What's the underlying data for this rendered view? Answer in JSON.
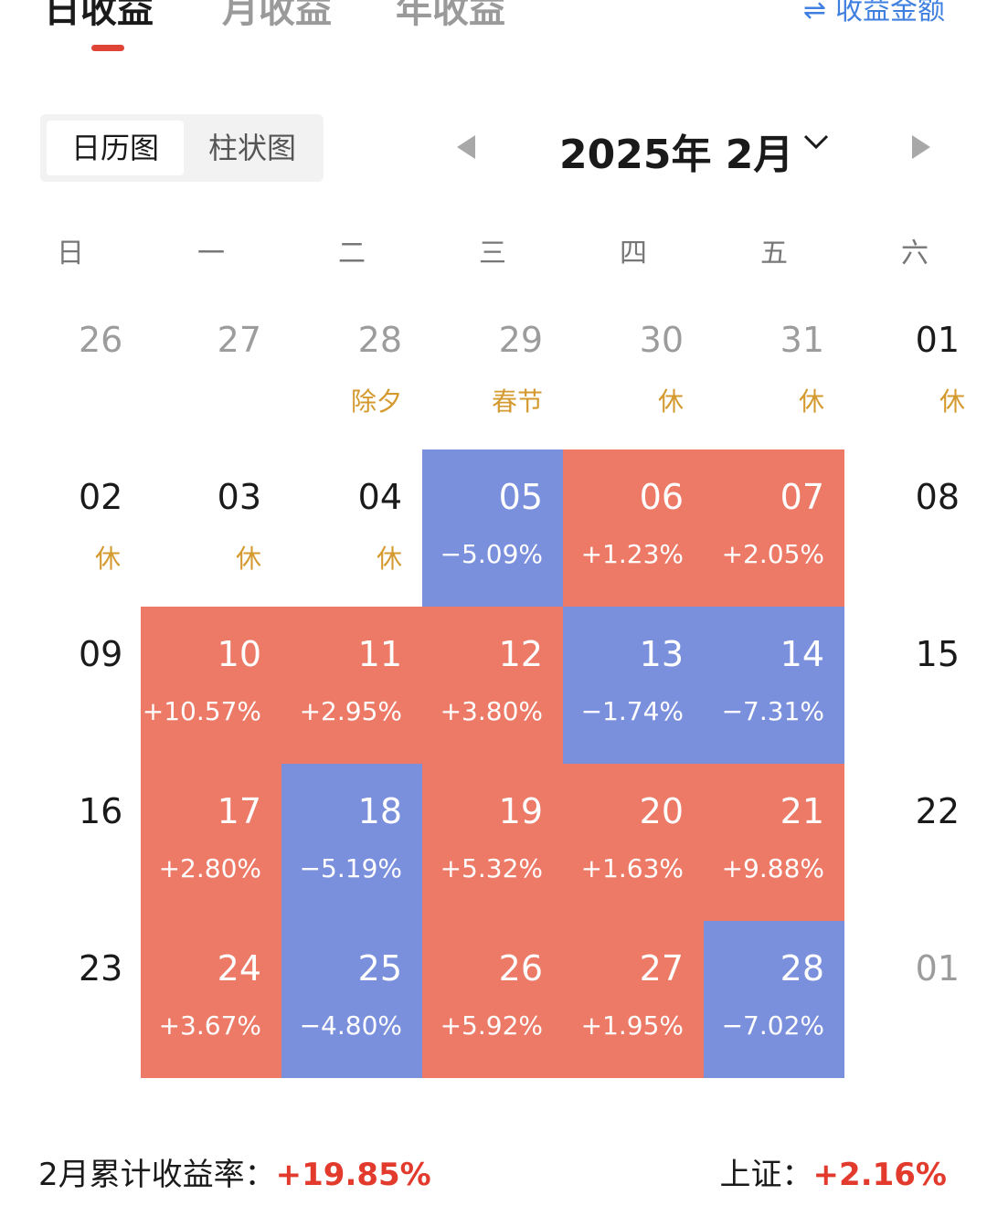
{
  "top_tabs": [
    {
      "label": "日收益",
      "active": true
    },
    {
      "label": "月收益",
      "active": false
    },
    {
      "label": "年收益",
      "active": false
    }
  ],
  "amount_toggle": {
    "icon": "swap-icon",
    "label": "收益金额"
  },
  "view_switch": {
    "active": "日历图",
    "inactive": "柱状图"
  },
  "month_nav": {
    "title": "2025年 2月",
    "prev_icon": "caret-left-icon",
    "next_icon": "caret-right-icon",
    "dropdown_icon": "chevron-down-icon"
  },
  "weekdays": [
    "日",
    "一",
    "二",
    "三",
    "四",
    "五",
    "六"
  ],
  "colors": {
    "up": "#ec7a66",
    "down": "#7b90dd",
    "holiday": "#d49a2f",
    "accent": "#e23a2c",
    "link": "#3f7fe0"
  },
  "calendar": {
    "weeks": [
      [
        {
          "day": "26",
          "note": "",
          "state": "dim"
        },
        {
          "day": "27",
          "note": "",
          "state": "dim"
        },
        {
          "day": "28",
          "note": "除夕",
          "state": "dim"
        },
        {
          "day": "29",
          "note": "春节",
          "state": "dim"
        },
        {
          "day": "30",
          "note": "休",
          "state": "dim"
        },
        {
          "day": "31",
          "note": "休",
          "state": "dim"
        },
        {
          "day": "01",
          "note": "休",
          "state": "plain"
        }
      ],
      [
        {
          "day": "02",
          "note": "休",
          "state": "plain"
        },
        {
          "day": "03",
          "note": "休",
          "state": "plain"
        },
        {
          "day": "04",
          "note": "休",
          "state": "plain"
        },
        {
          "day": "05",
          "note": "−5.09%",
          "state": "down"
        },
        {
          "day": "06",
          "note": "+1.23%",
          "state": "up"
        },
        {
          "day": "07",
          "note": "+2.05%",
          "state": "up"
        },
        {
          "day": "08",
          "note": "",
          "state": "plain"
        }
      ],
      [
        {
          "day": "09",
          "note": "",
          "state": "plain"
        },
        {
          "day": "10",
          "note": "+10.57%",
          "state": "up"
        },
        {
          "day": "11",
          "note": "+2.95%",
          "state": "up"
        },
        {
          "day": "12",
          "note": "+3.80%",
          "state": "up"
        },
        {
          "day": "13",
          "note": "−1.74%",
          "state": "down"
        },
        {
          "day": "14",
          "note": "−7.31%",
          "state": "down"
        },
        {
          "day": "15",
          "note": "",
          "state": "plain"
        }
      ],
      [
        {
          "day": "16",
          "note": "",
          "state": "plain"
        },
        {
          "day": "17",
          "note": "+2.80%",
          "state": "up"
        },
        {
          "day": "18",
          "note": "−5.19%",
          "state": "down"
        },
        {
          "day": "19",
          "note": "+5.32%",
          "state": "up"
        },
        {
          "day": "20",
          "note": "+1.63%",
          "state": "up"
        },
        {
          "day": "21",
          "note": "+9.88%",
          "state": "up"
        },
        {
          "day": "22",
          "note": "",
          "state": "plain"
        }
      ],
      [
        {
          "day": "23",
          "note": "",
          "state": "plain"
        },
        {
          "day": "24",
          "note": "+3.67%",
          "state": "up"
        },
        {
          "day": "25",
          "note": "−4.80%",
          "state": "down"
        },
        {
          "day": "26",
          "note": "+5.92%",
          "state": "up"
        },
        {
          "day": "27",
          "note": "+1.95%",
          "state": "up"
        },
        {
          "day": "28",
          "note": "−7.02%",
          "state": "down"
        },
        {
          "day": "01",
          "note": "",
          "state": "dim"
        }
      ]
    ]
  },
  "footer": {
    "cumulative_label": "2月累计收益率：",
    "cumulative_value": "+19.85%",
    "index_label": "上证：",
    "index_value": "+2.16%"
  }
}
